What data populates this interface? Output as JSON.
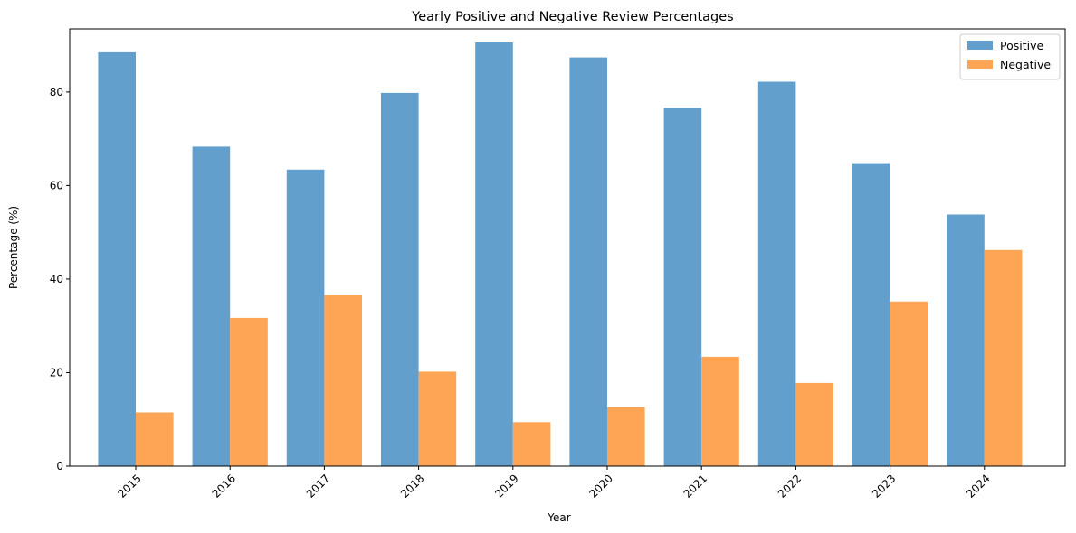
{
  "chart_data": {
    "type": "bar",
    "title": "Yearly Positive and Negative Review Percentages",
    "xlabel": "Year",
    "ylabel": "Percentage (%)",
    "categories": [
      "2015",
      "2016",
      "2017",
      "2018",
      "2019",
      "2020",
      "2021",
      "2022",
      "2023",
      "2024"
    ],
    "series": [
      {
        "name": "Positive",
        "color": "#629fcc",
        "values": [
          88.5,
          68.3,
          63.4,
          79.8,
          90.6,
          87.4,
          76.6,
          82.2,
          64.8,
          53.8
        ]
      },
      {
        "name": "Negative",
        "color": "#fea555",
        "values": [
          11.5,
          31.7,
          36.6,
          20.2,
          9.4,
          12.6,
          23.4,
          17.8,
          35.2,
          46.2
        ]
      }
    ],
    "ylim": [
      0,
      93.5
    ],
    "yticks": [
      0,
      20,
      40,
      60,
      80
    ],
    "grid": false,
    "legend_position": "top-right",
    "xtick_rotation": 45
  }
}
